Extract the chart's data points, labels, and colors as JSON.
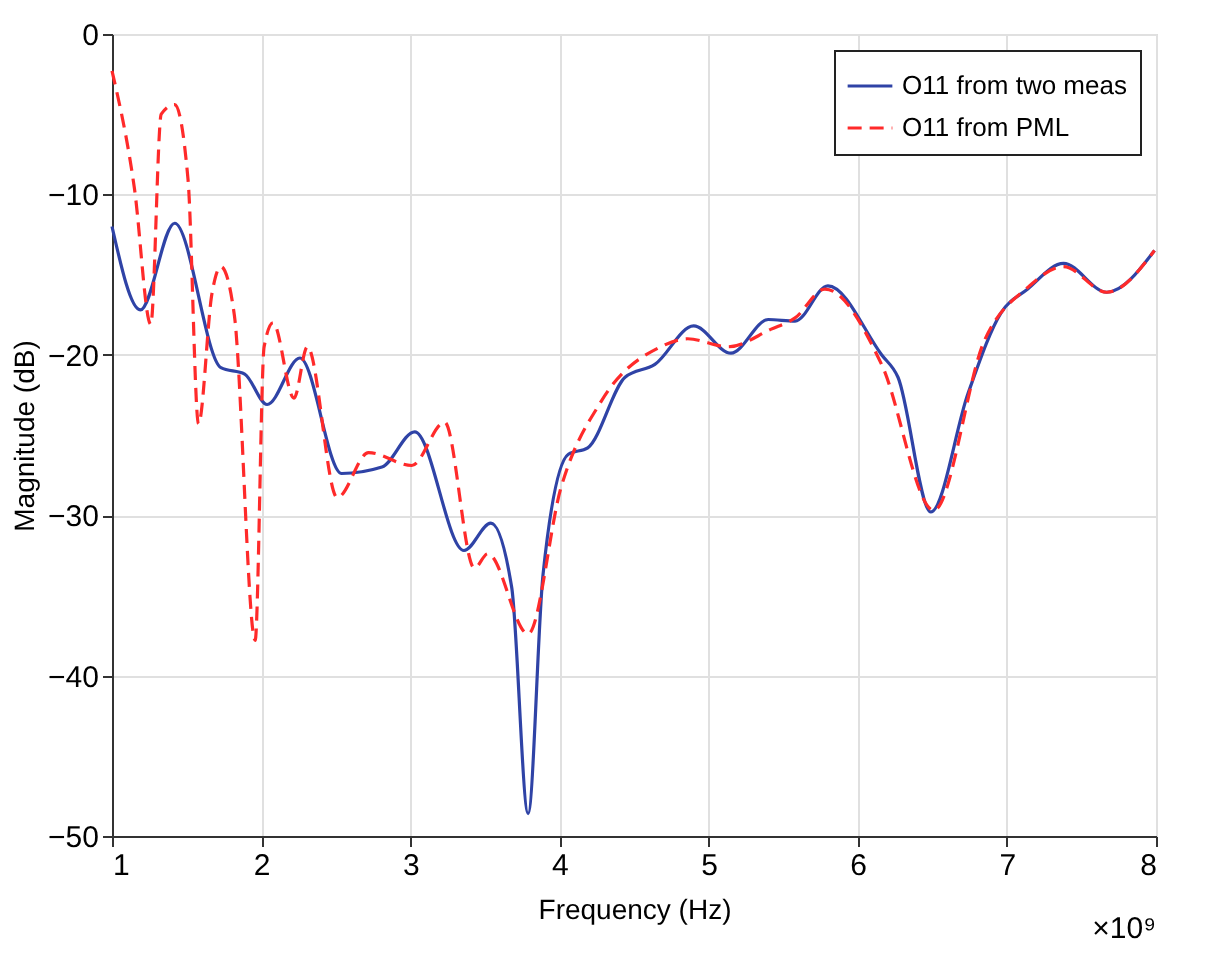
{
  "chart_data": {
    "type": "line",
    "xlabel": "Frequency (Hz)",
    "ylabel": "Magnitude (dB)",
    "xlim": [
      1,
      8
    ],
    "xticks": [
      1,
      2,
      3,
      4,
      5,
      6,
      7,
      8
    ],
    "ylim": [
      -50,
      0
    ],
    "yticks": [
      -50,
      -40,
      -30,
      -20,
      -10,
      0
    ],
    "grid": true,
    "legend": "top right",
    "annotations": [
      "×10⁹"
    ],
    "series": [
      {
        "name": "O11 from two meas",
        "color": "#2f43a6",
        "line_style": "solid",
        "x": [
          1.0,
          1.19,
          1.42,
          1.73,
          1.89,
          2.04,
          2.26,
          2.54,
          2.81,
          3.03,
          3.36,
          3.54,
          3.68,
          3.79,
          3.89,
          4.06,
          4.19,
          4.44,
          4.64,
          4.9,
          5.15,
          5.4,
          5.58,
          5.8,
          6.16,
          6.27,
          6.49,
          6.74,
          6.96,
          7.14,
          7.38,
          7.67,
          7.99
        ],
        "values": [
          -12.0,
          -17.2,
          -11.8,
          -20.8,
          -21.2,
          -23.1,
          -20.2,
          -27.4,
          -27.0,
          -24.8,
          -32.2,
          -30.5,
          -34.5,
          -48.6,
          -33.7,
          -26.2,
          -25.8,
          -21.4,
          -20.6,
          -18.2,
          -19.9,
          -17.8,
          -17.9,
          -15.7,
          -20.0,
          -21.4,
          -29.8,
          -22.4,
          -17.4,
          -15.9,
          -14.3,
          -16.1,
          -13.5
        ]
      },
      {
        "name": "O11 from PML",
        "color": "#ff2a2a",
        "line_style": "dashed",
        "x": [
          1.0,
          1.15,
          1.26,
          1.33,
          1.42,
          1.51,
          1.58,
          1.67,
          1.73,
          1.82,
          1.96,
          2.02,
          2.08,
          2.22,
          2.31,
          2.51,
          2.72,
          3.01,
          3.23,
          3.43,
          3.52,
          3.79,
          4.01,
          4.28,
          4.68,
          4.86,
          5.13,
          5.42,
          5.58,
          5.78,
          6.16,
          6.51,
          6.85,
          7.14,
          7.38,
          7.67,
          7.99
        ],
        "values": [
          -2.3,
          -9.6,
          -18.1,
          -5.0,
          -4.4,
          -9.1,
          -24.3,
          -16.2,
          -14.5,
          -17.5,
          -37.8,
          -19.5,
          -18.0,
          -22.7,
          -19.5,
          -28.9,
          -26.1,
          -26.9,
          -24.2,
          -33.3,
          -32.4,
          -37.4,
          -28.3,
          -22.9,
          -19.5,
          -19.0,
          -19.5,
          -18.4,
          -17.7,
          -15.9,
          -20.6,
          -29.7,
          -19.1,
          -15.8,
          -14.5,
          -16.1,
          -13.5
        ]
      }
    ]
  }
}
